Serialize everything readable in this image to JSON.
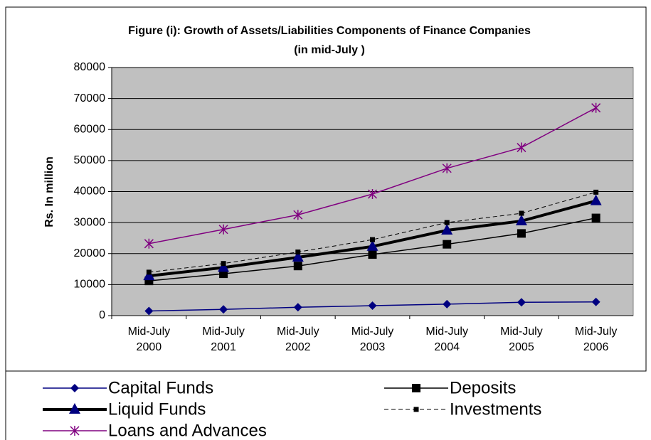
{
  "chart_data": {
    "type": "line",
    "title": "Figure (i): Growth of Assets/Liabilities Components of Finance Companies",
    "subtitle": "(in mid-July )",
    "y_label": "Rs. In million",
    "categories": [
      "Mid-July 2000",
      "Mid-July 2001",
      "Mid-July 2002",
      "Mid-July 2003",
      "Mid-July 2004",
      "Mid-July 2005",
      "Mid-July 2006"
    ],
    "ylim": [
      0,
      80000
    ],
    "yticks": [
      0,
      10000,
      20000,
      30000,
      40000,
      50000,
      60000,
      70000,
      80000
    ],
    "grid": true,
    "legend": "bottom",
    "series": [
      {
        "name": "Capital Funds",
        "color": "#000080",
        "marker": "diamond",
        "marker_color": "#000080",
        "line_width": 1.5,
        "dash": false,
        "values": [
          1500,
          2000,
          2700,
          3200,
          3700,
          4300,
          4400
        ]
      },
      {
        "name": "Deposits",
        "color": "#000000",
        "marker": "square",
        "marker_color": "#000000",
        "line_width": 1.5,
        "dash": false,
        "values": [
          11200,
          13500,
          16000,
          19700,
          23000,
          26500,
          31500
        ]
      },
      {
        "name": "Liquid Funds",
        "color": "#000000",
        "marker": "triangle",
        "marker_color": "#000080",
        "line_width": 4,
        "dash": false,
        "values": [
          12800,
          15500,
          18800,
          22300,
          27500,
          30500,
          37000
        ]
      },
      {
        "name": "Investments",
        "color": "#000000",
        "marker": "smallsquare",
        "marker_color": "#000000",
        "line_width": 1,
        "dash": true,
        "values": [
          14000,
          16800,
          20500,
          24500,
          30000,
          33000,
          39800
        ]
      },
      {
        "name": "Loans and Advances",
        "color": "#800080",
        "marker": "star",
        "marker_color": "#800080",
        "line_width": 1.5,
        "dash": false,
        "values": [
          23200,
          27800,
          32500,
          39200,
          47500,
          54200,
          67000
        ]
      }
    ]
  }
}
